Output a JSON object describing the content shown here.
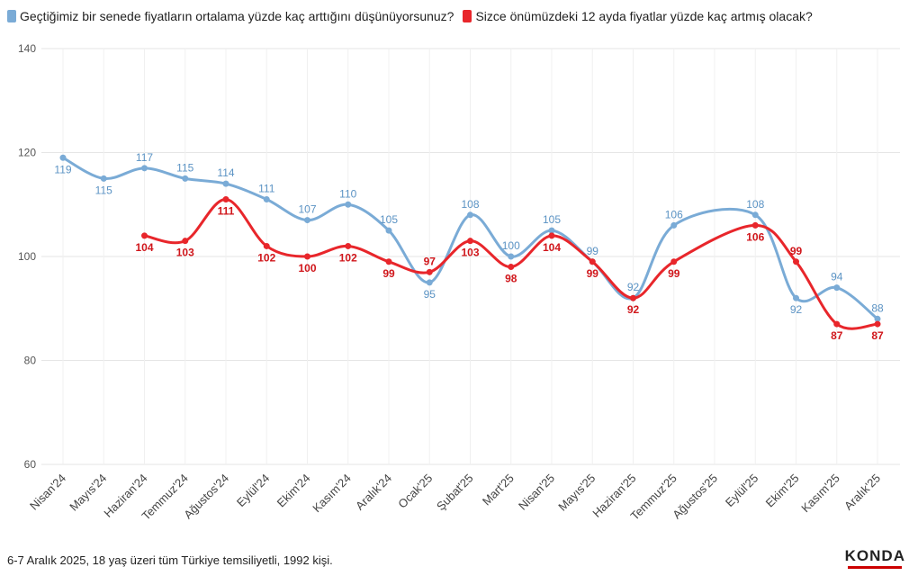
{
  "chart_data": {
    "type": "line",
    "categories": [
      "Nisan'24",
      "Mayıs'24",
      "Haziran'24",
      "Temmuz'24",
      "Ağustos'24",
      "Eylül'24",
      "Ekim'24",
      "Kasım'24",
      "Aralık'24",
      "Ocak'25",
      "Şubat'25",
      "Mart'25",
      "Nisan'25",
      "Mayıs'25",
      "Haziran'25",
      "Temmuz'25",
      "Ağustos'25",
      "Eylül'25",
      "Ekim'25",
      "Kasım'25",
      "Aralık'25"
    ],
    "series": [
      {
        "name": "Geçtiğimiz bir senede fiyatların ortalama yüzde kaç arttığını düşünüyorsunuz?",
        "color": "#7aabd6",
        "label_color": "#5b93c4",
        "values": [
          119,
          115,
          117,
          115,
          114,
          111,
          107,
          110,
          105,
          95,
          108,
          100,
          105,
          99,
          92,
          106,
          null,
          108,
          92,
          94,
          88
        ]
      },
      {
        "name": "Sizce önümüzdeki 12 ayda fiyatlar yüzde kaç artmış olacak?",
        "color": "#e8262b",
        "label_color": "#d0161b",
        "values": [
          null,
          null,
          104,
          103,
          111,
          102,
          100,
          102,
          99,
          97,
          103,
          98,
          104,
          99,
          92,
          99,
          null,
          106,
          99,
          87,
          87
        ]
      }
    ],
    "yticks": [
      60,
      80,
      100,
      120,
      140
    ],
    "ylim": [
      60,
      140
    ],
    "grid": true,
    "legend": "top-left"
  },
  "footer": {
    "note": "6-7 Aralık 2025, 18 yaş üzeri tüm Türkiye temsiliyetli, 1992 kişi.",
    "logo": "KONDA"
  }
}
